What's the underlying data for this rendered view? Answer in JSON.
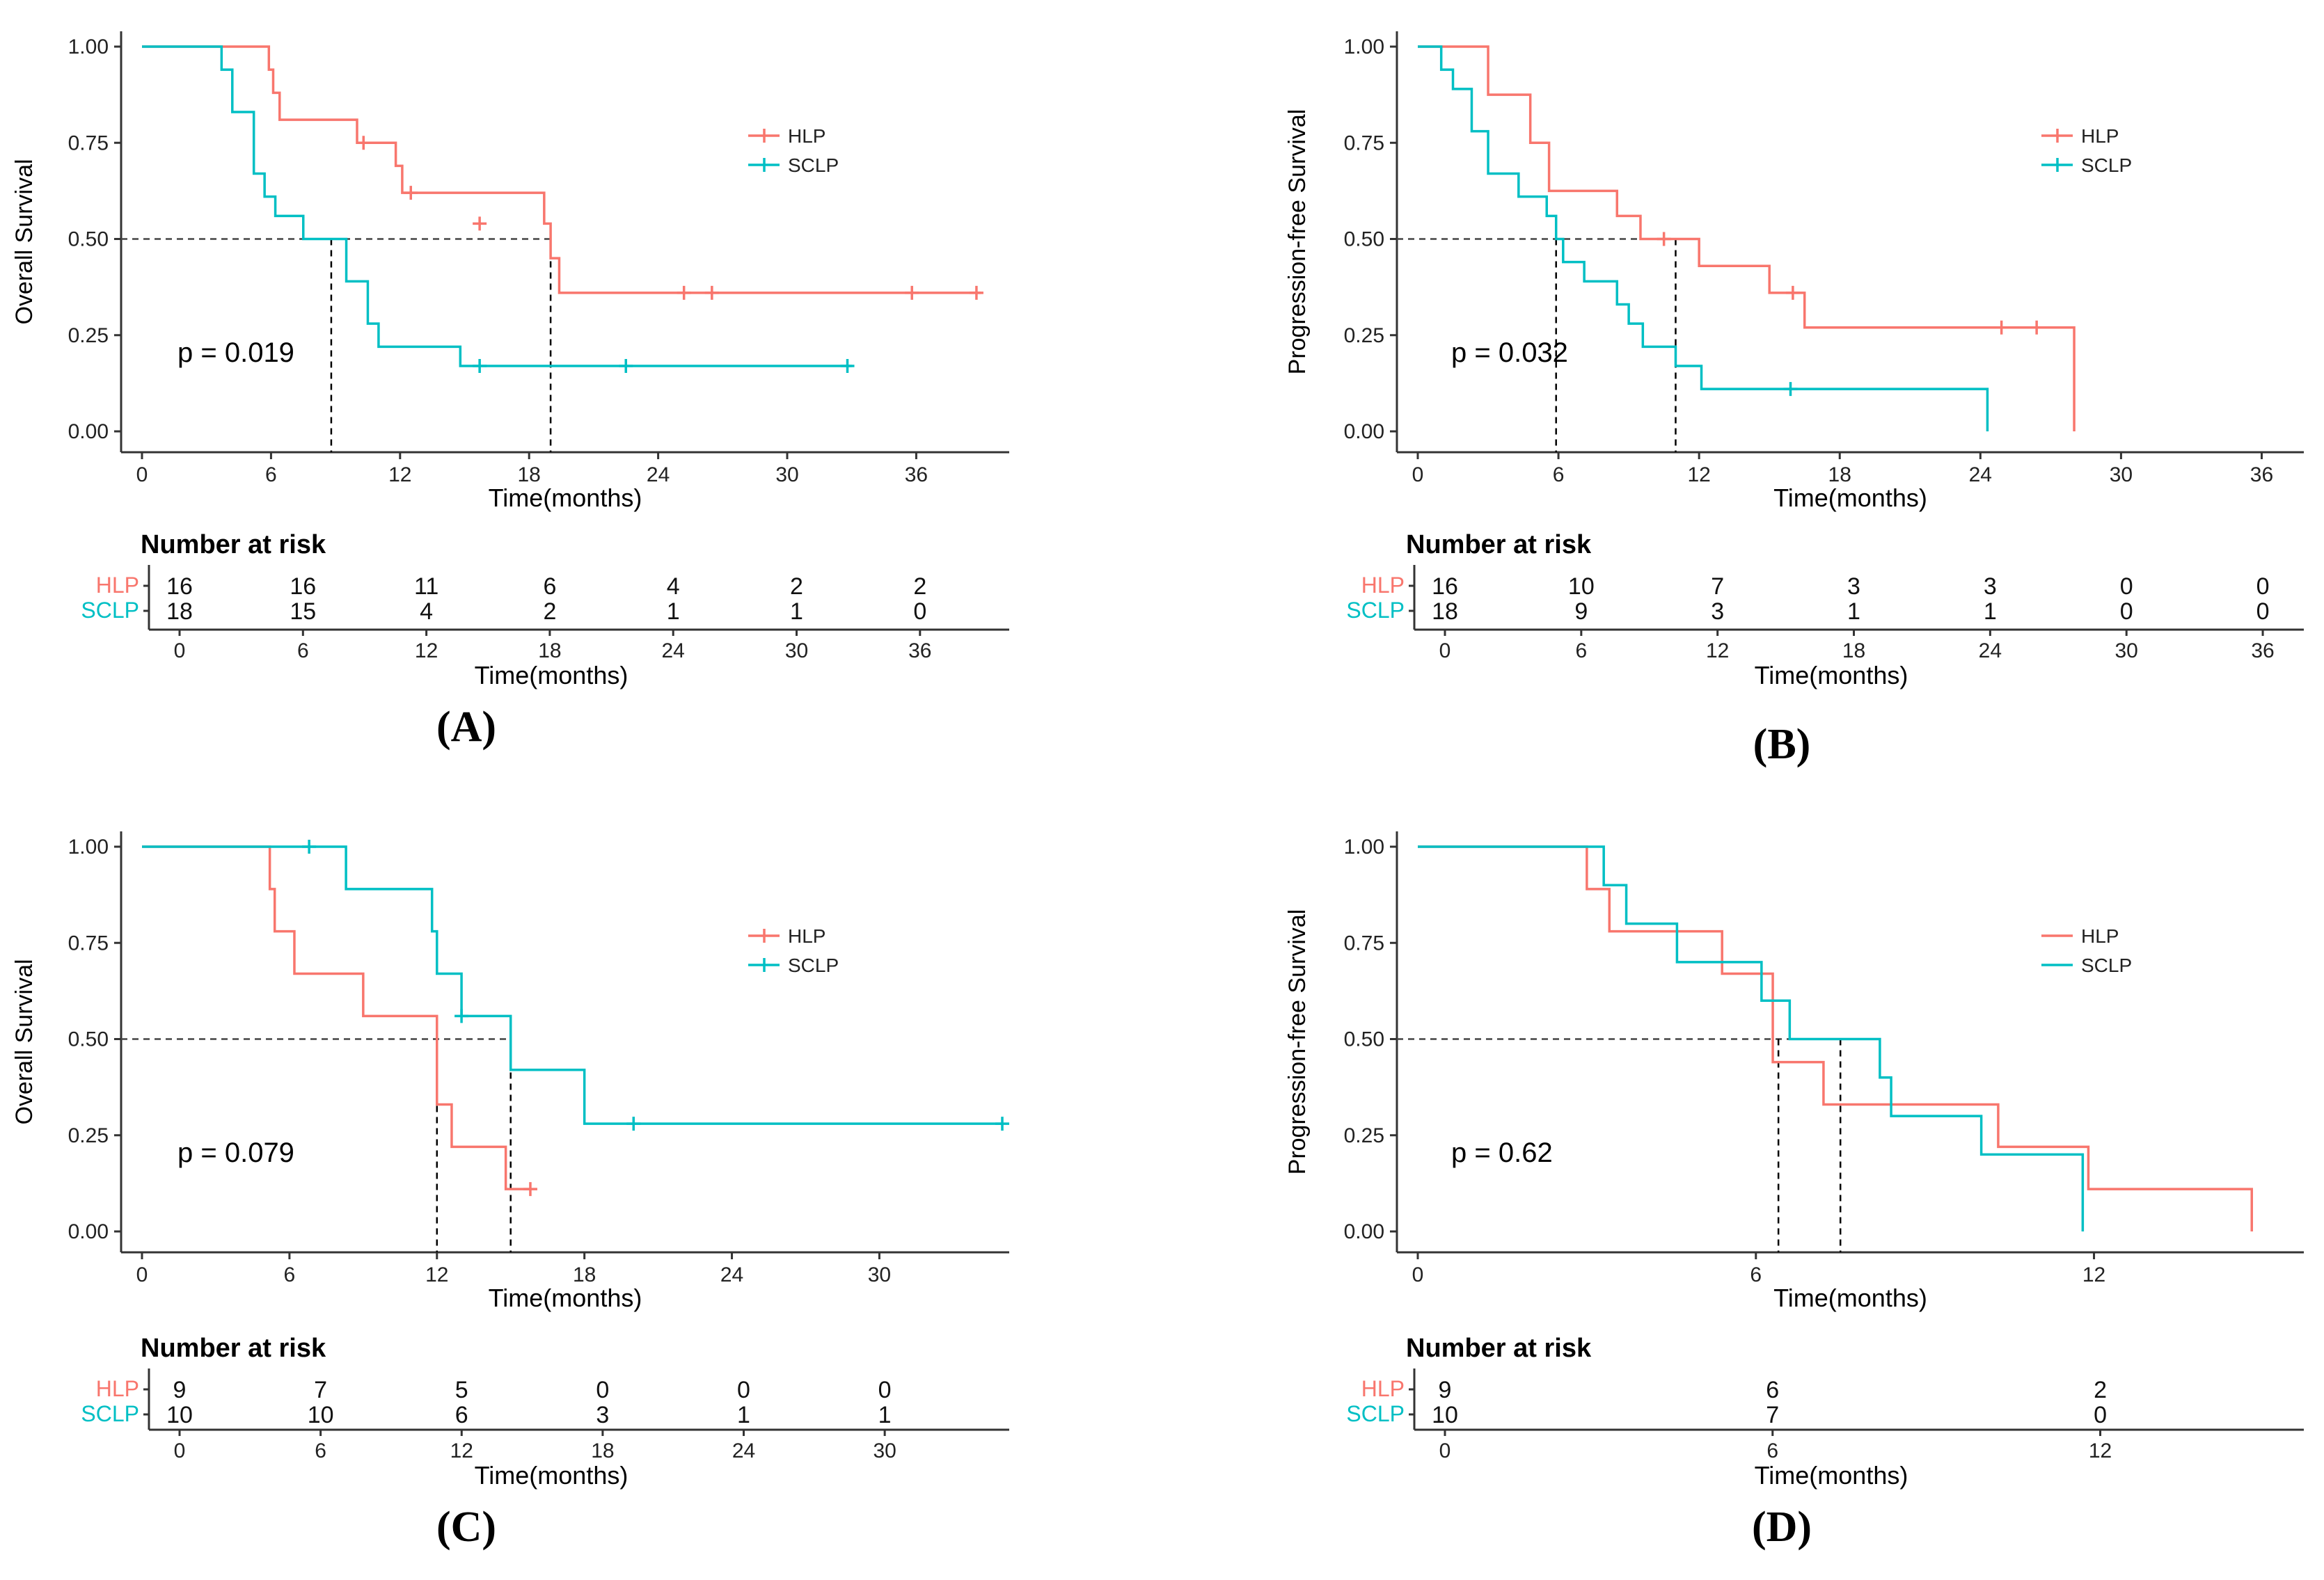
{
  "colors": {
    "hlp": "#F8766D",
    "sclp": "#00BFC4",
    "axis": "#333333",
    "text": "#000000",
    "ref": "#444444"
  },
  "chart_data": [
    {
      "panel": "(A)",
      "type": "line",
      "subtype": "kaplan-meier",
      "ylabel": "Overall Survival",
      "xlabel": "Time(months)",
      "xlim": [
        0,
        40
      ],
      "ylim": [
        0,
        1
      ],
      "xticks": [
        "0",
        "6",
        "12",
        "18",
        "24",
        "30",
        "36"
      ],
      "xtick_values": [
        0,
        6,
        12,
        18,
        24,
        30,
        36
      ],
      "yticks": [
        "0.00",
        "0.25",
        "0.50",
        "0.75",
        "1.00"
      ],
      "ytick_values": [
        0,
        0.25,
        0.5,
        0.75,
        1
      ],
      "pvalue": "p = 0.019",
      "legend": [
        "HLP",
        "SCLP"
      ],
      "legend_censor_marks": true,
      "median_lines": [
        8.8,
        19.0
      ],
      "series": [
        {
          "name": "HLP",
          "steps": [
            [
              0,
              1.0
            ],
            [
              5.9,
              0.94
            ],
            [
              6.1,
              0.88
            ],
            [
              6.4,
              0.81
            ],
            [
              10.0,
              0.75
            ],
            [
              11.8,
              0.69
            ],
            [
              12.1,
              0.62
            ],
            [
              18.7,
              0.54
            ],
            [
              19.0,
              0.45
            ],
            [
              19.4,
              0.36
            ],
            [
              39.0,
              0.36
            ]
          ],
          "censors": [
            [
              10.3,
              0.75
            ],
            [
              12.5,
              0.62
            ],
            [
              15.7,
              0.54
            ],
            [
              25.2,
              0.36
            ],
            [
              26.5,
              0.36
            ],
            [
              35.8,
              0.36
            ],
            [
              38.8,
              0.36
            ]
          ]
        },
        {
          "name": "SCLP",
          "steps": [
            [
              0,
              1.0
            ],
            [
              3.7,
              0.94
            ],
            [
              4.2,
              0.83
            ],
            [
              5.2,
              0.67
            ],
            [
              5.7,
              0.61
            ],
            [
              6.2,
              0.56
            ],
            [
              7.5,
              0.5
            ],
            [
              9.5,
              0.39
            ],
            [
              10.5,
              0.28
            ],
            [
              11.0,
              0.22
            ],
            [
              14.8,
              0.17
            ],
            [
              33.0,
              0.17
            ]
          ],
          "censors": [
            [
              15.7,
              0.17
            ],
            [
              22.5,
              0.17
            ],
            [
              32.8,
              0.17
            ]
          ]
        }
      ],
      "risk_table": {
        "title": "Number at risk",
        "labels": [
          "HLP",
          "SCLP"
        ],
        "times": [
          "0",
          "6",
          "12",
          "18",
          "24",
          "30",
          "36"
        ],
        "rows": [
          [
            "16",
            "16",
            "11",
            "6",
            "4",
            "2",
            "2"
          ],
          [
            "18",
            "15",
            "4",
            "2",
            "1",
            "1",
            "0"
          ]
        ],
        "xlabel": "Time(months)"
      }
    },
    {
      "panel": "(B)",
      "type": "line",
      "subtype": "kaplan-meier",
      "ylabel": "Progression-free Survival",
      "xlabel": "Time(months)",
      "xlim": [
        0,
        37.5
      ],
      "ylim": [
        0,
        1
      ],
      "xticks": [
        "0",
        "6",
        "12",
        "18",
        "24",
        "30",
        "36"
      ],
      "xtick_values": [
        0,
        6,
        12,
        18,
        24,
        30,
        36
      ],
      "yticks": [
        "0.00",
        "0.25",
        "0.50",
        "0.75",
        "1.00"
      ],
      "ytick_values": [
        0,
        0.25,
        0.5,
        0.75,
        1
      ],
      "pvalue": "p = 0.032",
      "legend": [
        "HLP",
        "SCLP"
      ],
      "legend_censor_marks": true,
      "median_lines": [
        5.9,
        11.0
      ],
      "series": [
        {
          "name": "HLP",
          "steps": [
            [
              0,
              1.0
            ],
            [
              3.0,
              0.875
            ],
            [
              4.8,
              0.75
            ],
            [
              5.6,
              0.625
            ],
            [
              8.5,
              0.56
            ],
            [
              9.5,
              0.5
            ],
            [
              12.0,
              0.43
            ],
            [
              15.0,
              0.36
            ],
            [
              16.5,
              0.27
            ],
            [
              28.0,
              0.0
            ]
          ],
          "censors": [
            [
              10.5,
              0.5
            ],
            [
              16.0,
              0.36
            ],
            [
              24.9,
              0.27
            ],
            [
              26.4,
              0.27
            ]
          ]
        },
        {
          "name": "SCLP",
          "steps": [
            [
              0,
              1.0
            ],
            [
              1.0,
              0.94
            ],
            [
              1.5,
              0.89
            ],
            [
              2.3,
              0.78
            ],
            [
              3.0,
              0.67
            ],
            [
              4.3,
              0.61
            ],
            [
              5.5,
              0.56
            ],
            [
              5.9,
              0.5
            ],
            [
              6.2,
              0.44
            ],
            [
              7.1,
              0.39
            ],
            [
              8.5,
              0.33
            ],
            [
              9.0,
              0.28
            ],
            [
              9.6,
              0.22
            ],
            [
              11.0,
              0.17
            ],
            [
              12.1,
              0.11
            ],
            [
              24.3,
              0.0
            ]
          ],
          "censors": [
            [
              15.9,
              0.11
            ]
          ]
        }
      ],
      "risk_table": {
        "title": "Number at risk",
        "labels": [
          "HLP",
          "SCLP"
        ],
        "times": [
          "0",
          "6",
          "12",
          "18",
          "24",
          "30",
          "36"
        ],
        "rows": [
          [
            "16",
            "10",
            "7",
            "3",
            "3",
            "0",
            "0"
          ],
          [
            "18",
            "9",
            "3",
            "1",
            "1",
            "0",
            "0"
          ]
        ],
        "xlabel": "Time(months)"
      }
    },
    {
      "panel": "(C)",
      "type": "line",
      "subtype": "kaplan-meier",
      "ylabel": "Overall Survival",
      "xlabel": "Time(months)",
      "xlim": [
        0,
        35
      ],
      "ylim": [
        0,
        1
      ],
      "xticks": [
        "0",
        "6",
        "12",
        "18",
        "24",
        "30"
      ],
      "xtick_values": [
        0,
        6,
        12,
        18,
        24,
        30
      ],
      "yticks": [
        "0.00",
        "0.25",
        "0.50",
        "0.75",
        "1.00"
      ],
      "ytick_values": [
        0,
        0.25,
        0.5,
        0.75,
        1
      ],
      "pvalue": "p = 0.079",
      "legend": [
        "HLP",
        "SCLP"
      ],
      "legend_censor_marks": true,
      "median_lines": [
        12.0,
        15.0
      ],
      "series": [
        {
          "name": "HLP",
          "steps": [
            [
              0,
              1.0
            ],
            [
              5.2,
              0.89
            ],
            [
              5.4,
              0.78
            ],
            [
              6.2,
              0.67
            ],
            [
              9.0,
              0.56
            ],
            [
              12.0,
              0.33
            ],
            [
              12.6,
              0.22
            ],
            [
              14.8,
              0.11
            ],
            [
              15.8,
              0.11
            ]
          ],
          "censors": [
            [
              15.8,
              0.11
            ]
          ]
        },
        {
          "name": "SCLP",
          "steps": [
            [
              0,
              1.0
            ],
            [
              8.3,
              0.89
            ],
            [
              11.8,
              0.78
            ],
            [
              12.0,
              0.67
            ],
            [
              13.0,
              0.56
            ],
            [
              15.0,
              0.42
            ],
            [
              18.0,
              0.28
            ],
            [
              35.0,
              0.28
            ]
          ],
          "censors": [
            [
              6.8,
              1.0
            ],
            [
              13.0,
              0.56
            ],
            [
              20.0,
              0.28
            ],
            [
              35.0,
              0.28
            ]
          ]
        }
      ],
      "risk_table": {
        "title": "Number at risk",
        "labels": [
          "HLP",
          "SCLP"
        ],
        "times": [
          "0",
          "6",
          "12",
          "18",
          "24",
          "30"
        ],
        "rows": [
          [
            "9",
            "7",
            "5",
            "0",
            "0",
            "0"
          ],
          [
            "10",
            "10",
            "6",
            "3",
            "1",
            "1"
          ]
        ],
        "xlabel": "Time(months)"
      }
    },
    {
      "panel": "(D)",
      "type": "line",
      "subtype": "kaplan-meier",
      "ylabel": "Progression-free Survival",
      "xlabel": "Time(months)",
      "xlim": [
        0,
        15.6
      ],
      "ylim": [
        0,
        1
      ],
      "xticks": [
        "0",
        "6",
        "12"
      ],
      "xtick_values": [
        0,
        6,
        12
      ],
      "yticks": [
        "0.00",
        "0.25",
        "0.50",
        "0.75",
        "1.00"
      ],
      "ytick_values": [
        0,
        0.25,
        0.5,
        0.75,
        1
      ],
      "pvalue": "p = 0.62",
      "legend": [
        "HLP",
        "SCLP"
      ],
      "legend_censor_marks": false,
      "median_lines": [
        6.4,
        7.5
      ],
      "series": [
        {
          "name": "HLP",
          "steps": [
            [
              0,
              1.0
            ],
            [
              3.0,
              0.89
            ],
            [
              3.4,
              0.78
            ],
            [
              5.4,
              0.67
            ],
            [
              6.3,
              0.44
            ],
            [
              7.2,
              0.33
            ],
            [
              10.3,
              0.22
            ],
            [
              11.9,
              0.11
            ],
            [
              14.8,
              0.0
            ]
          ],
          "censors": []
        },
        {
          "name": "SCLP",
          "steps": [
            [
              0,
              1.0
            ],
            [
              3.3,
              0.9
            ],
            [
              3.7,
              0.8
            ],
            [
              4.6,
              0.7
            ],
            [
              6.1,
              0.6
            ],
            [
              6.6,
              0.5
            ],
            [
              8.2,
              0.4
            ],
            [
              8.4,
              0.3
            ],
            [
              10.0,
              0.2
            ],
            [
              11.8,
              0.0
            ]
          ],
          "censors": []
        }
      ],
      "risk_table": {
        "title": "Number at risk",
        "labels": [
          "HLP",
          "SCLP"
        ],
        "times": [
          "0",
          "6",
          "12"
        ],
        "rows": [
          [
            "9",
            "6",
            "2"
          ],
          [
            "10",
            "7",
            "0"
          ]
        ],
        "xlabel": "Time(months)"
      }
    }
  ]
}
